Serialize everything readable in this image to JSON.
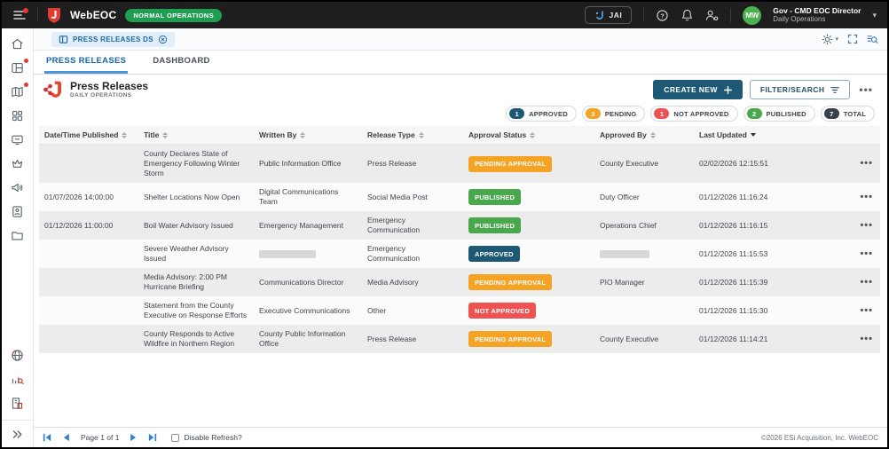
{
  "topbar": {
    "app_name": "WebEOC",
    "operations_badge": "NORMAL OPERATIONS",
    "jai_button_label": "JAI",
    "user_name": "Gov - CMD EOC Director",
    "user_position": "Daily Operations",
    "avatar_initials": "MW"
  },
  "board_tab": {
    "label": "PRESS RELEASES DS"
  },
  "view_tabs": [
    {
      "label": "PRESS RELEASES",
      "active": true
    },
    {
      "label": "DASHBOARD",
      "active": false
    }
  ],
  "board_header": {
    "title": "Press Releases",
    "subtitle": "DAILY OPERATIONS",
    "create_button_label": "CREATE NEW",
    "filter_button_label": "FILTER/SEARCH"
  },
  "summary_badges": [
    {
      "count": "1",
      "label": "APPROVED",
      "color": "#1D5875"
    },
    {
      "count": "3",
      "label": "PENDING",
      "color": "#F5A324"
    },
    {
      "count": "1",
      "label": "NOT APPROVED",
      "color": "#EF5252"
    },
    {
      "count": "2",
      "label": "PUBLISHED",
      "color": "#49A84C"
    },
    {
      "count": "7",
      "label": "TOTAL",
      "color": "#38414B"
    }
  ],
  "status_colors": {
    "PENDING APPROVAL": "#F5A324",
    "PUBLISHED": "#49A84C",
    "APPROVED": "#1D5875",
    "NOT APPROVED": "#EF5252"
  },
  "table": {
    "columns": [
      {
        "label": "Date/Time Published",
        "sort": "both"
      },
      {
        "label": "Title",
        "sort": "both"
      },
      {
        "label": "Written By",
        "sort": "both"
      },
      {
        "label": "Release Type",
        "sort": "both"
      },
      {
        "label": "Approval Status",
        "sort": "both"
      },
      {
        "label": "Approved By",
        "sort": "both"
      },
      {
        "label": "Last Updated",
        "sort": "desc"
      }
    ],
    "rows": [
      {
        "date_time_published": "",
        "title": "County Declares State of Emergency Following Winter Storm",
        "written_by": "Public Information Office",
        "release_type": "Press Release",
        "approval_status": "PENDING APPROVAL",
        "approved_by": "County Executive",
        "last_updated": "02/02/2026 12:15:51"
      },
      {
        "date_time_published": "01/07/2026 14:00:00",
        "title": "Shelter Locations Now Open",
        "written_by": "Digital Communications Team",
        "release_type": "Social Media Post",
        "approval_status": "PUBLISHED",
        "approved_by": "Duty Officer",
        "last_updated": "01/12/2026 11:16:24"
      },
      {
        "date_time_published": "01/12/2026 11:00:00",
        "title": "Boil Water Advisory Issued",
        "written_by": "Emergency Management",
        "release_type": "Emergency Communication",
        "approval_status": "PUBLISHED",
        "approved_by": "Operations Chief",
        "last_updated": "01/12/2026 11:16:15"
      },
      {
        "date_time_published": "",
        "title": "Severe Weather Advisory Issued",
        "written_by": "",
        "written_by_redacted": true,
        "release_type": "Emergency Communication",
        "approval_status": "APPROVED",
        "approved_by": "",
        "approved_by_redacted": true,
        "last_updated": "01/12/2026 11:15:53"
      },
      {
        "date_time_published": "",
        "title": "Media Advisory: 2:00 PM Hurricane Briefing",
        "written_by": "Communications Director",
        "release_type": "Media Advisory",
        "approval_status": "PENDING APPROVAL",
        "approved_by": "PIO Manager",
        "last_updated": "01/12/2026 11:15:39"
      },
      {
        "date_time_published": "",
        "title": "Statement from the County Executive on Response Efforts",
        "written_by": "Executive Communications",
        "release_type": "Other",
        "approval_status": "NOT APPROVED",
        "approved_by": "",
        "last_updated": "01/12/2026 11:15:30"
      },
      {
        "date_time_published": "",
        "title": "County Responds to Active Wildfire in Northern Region",
        "written_by": "County Public Information Office",
        "release_type": "Press Release",
        "approval_status": "PENDING APPROVAL",
        "approved_by": "County Executive",
        "last_updated": "01/12/2026 11:14:21"
      }
    ]
  },
  "footer": {
    "page_text": "Page 1 of 1",
    "disable_refresh_label": "Disable Refresh?",
    "copyright": "©2026 ESi Acquisition, Inc. WebEOC"
  },
  "sidebar": {
    "top_icons": [
      "home-icon",
      "boards-icon",
      "maps-icon",
      "menus-icon",
      "monitor-icon",
      "plugins-icon",
      "broadcast-icon",
      "contacts-icon",
      "folder-icon"
    ],
    "badged_icons": [
      "boards-icon",
      "maps-icon"
    ],
    "bottom_icons": [
      "globe-icon",
      "board-analytics-icon",
      "organization-icon",
      "expand-sidebar-icon"
    ]
  }
}
